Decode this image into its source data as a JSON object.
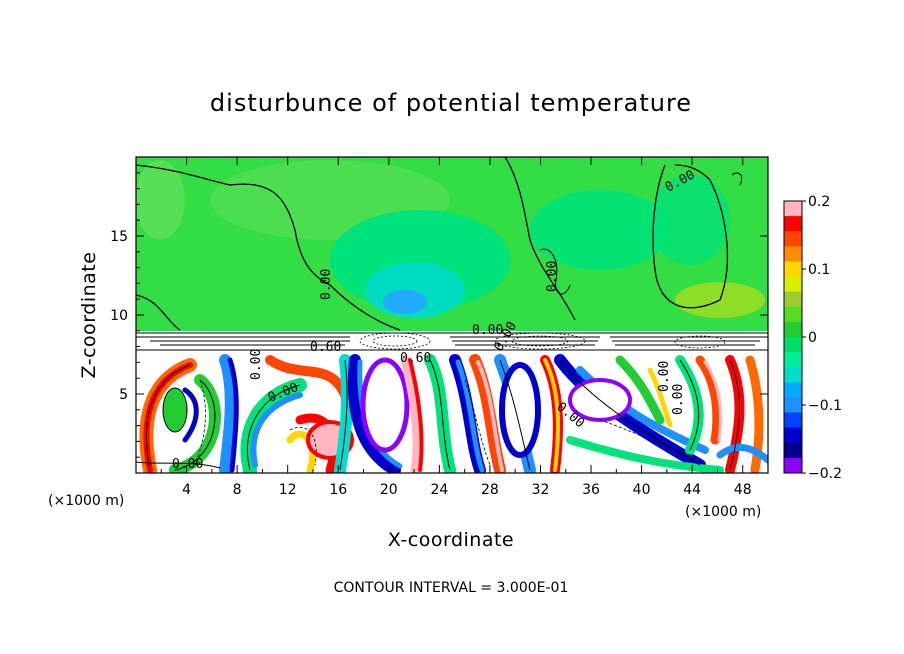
{
  "chart_data": {
    "type": "heatmap",
    "title": "disturbunce of potential temperature",
    "xlabel": "X-coordinate",
    "ylabel": "Z-coordinate",
    "x_unit": "(×1000 m)",
    "y_unit": "(×1000 m)",
    "xlim": [
      0,
      50
    ],
    "ylim": [
      0,
      20
    ],
    "x_ticks": [
      4,
      8,
      12,
      16,
      20,
      24,
      28,
      32,
      36,
      40,
      44,
      48
    ],
    "y_ticks": [
      5,
      10,
      15
    ],
    "colorbar": {
      "range": [
        -0.2,
        0.2
      ],
      "tick_values": [
        0.2,
        0.1,
        0,
        -0.1,
        -0.2
      ],
      "tick_labels": [
        "0.2",
        "0.1",
        "0",
        "−0.1",
        "−0.2"
      ],
      "colors": [
        "#ffb6c1",
        "#ff0000",
        "#ff4500",
        "#ff8c00",
        "#ffd700",
        "#d8ef00",
        "#9acd32",
        "#55dd22",
        "#22cc33",
        "#00dd66",
        "#00ee99",
        "#00ddcc",
        "#00aaff",
        "#1e90ff",
        "#0040ff",
        "#0000cd",
        "#00008b",
        "#8b00ff"
      ]
    },
    "contour_labels": [
      "0.00",
      "0.00",
      "0.00",
      "0.00",
      "0.00",
      "0.00",
      "0.60",
      "0.60",
      "0.00",
      "0.00",
      "0.00",
      "0.00",
      "0.00"
    ],
    "annotation": "CONTOUR INTERVAL = 3.000E-01"
  }
}
